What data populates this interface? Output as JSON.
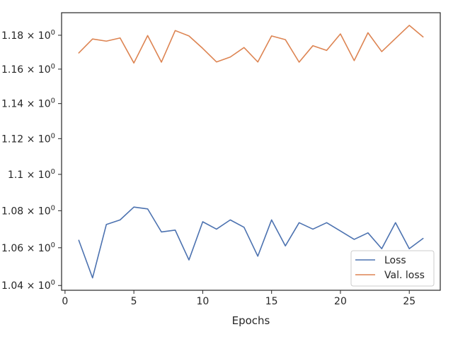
{
  "chart_data": {
    "type": "line",
    "title": "",
    "xlabel": "Epochs",
    "ylabel": "",
    "yscale": "log",
    "xlim": [
      -0.25,
      27.25
    ],
    "ylim": [
      1.0375,
      1.1935
    ],
    "x_ticks": [
      {
        "value": 0,
        "label": "0"
      },
      {
        "value": 5,
        "label": "5"
      },
      {
        "value": 10,
        "label": "10"
      },
      {
        "value": 15,
        "label": "15"
      },
      {
        "value": 20,
        "label": "20"
      },
      {
        "value": 25,
        "label": "25"
      }
    ],
    "y_ticks": [
      {
        "value": 1.04,
        "mantissa": "1.04"
      },
      {
        "value": 1.06,
        "mantissa": "1.06"
      },
      {
        "value": 1.08,
        "mantissa": "1.08"
      },
      {
        "value": 1.1,
        "mantissa": "1.1"
      },
      {
        "value": 1.12,
        "mantissa": "1.12"
      },
      {
        "value": 1.14,
        "mantissa": "1.14"
      },
      {
        "value": 1.16,
        "mantissa": "1.16"
      },
      {
        "value": 1.18,
        "mantissa": "1.18"
      }
    ],
    "y_tick_suffix": "× 10",
    "y_tick_exponent": "0",
    "grid": false,
    "legend": "lower-right",
    "x": [
      1,
      2,
      3,
      4,
      5,
      6,
      7,
      8,
      9,
      10,
      11,
      12,
      13,
      14,
      15,
      16,
      17,
      18,
      19,
      20,
      21,
      22,
      23,
      24,
      25,
      26
    ],
    "series": [
      {
        "name": "Loss",
        "color": "#4c72b0",
        "values": [
          1.064,
          1.044,
          1.0725,
          1.075,
          1.082,
          1.081,
          1.0685,
          1.0695,
          1.0535,
          1.074,
          1.07,
          1.075,
          1.071,
          1.0555,
          1.075,
          1.061,
          1.0735,
          1.07,
          1.0735,
          1.069,
          1.0645,
          1.068,
          1.0595,
          1.0735,
          1.0595,
          1.065
        ]
      },
      {
        "name": "Val. loss",
        "color": "#dd8452",
        "values": [
          1.1695,
          1.1778,
          1.1765,
          1.1784,
          1.1636,
          1.1798,
          1.1641,
          1.1828,
          1.1796,
          1.1722,
          1.1642,
          1.1671,
          1.1727,
          1.1642,
          1.1796,
          1.1774,
          1.1641,
          1.1738,
          1.171,
          1.1808,
          1.165,
          1.1815,
          1.1703,
          1.1781,
          1.1859,
          1.179
        ]
      }
    ]
  }
}
